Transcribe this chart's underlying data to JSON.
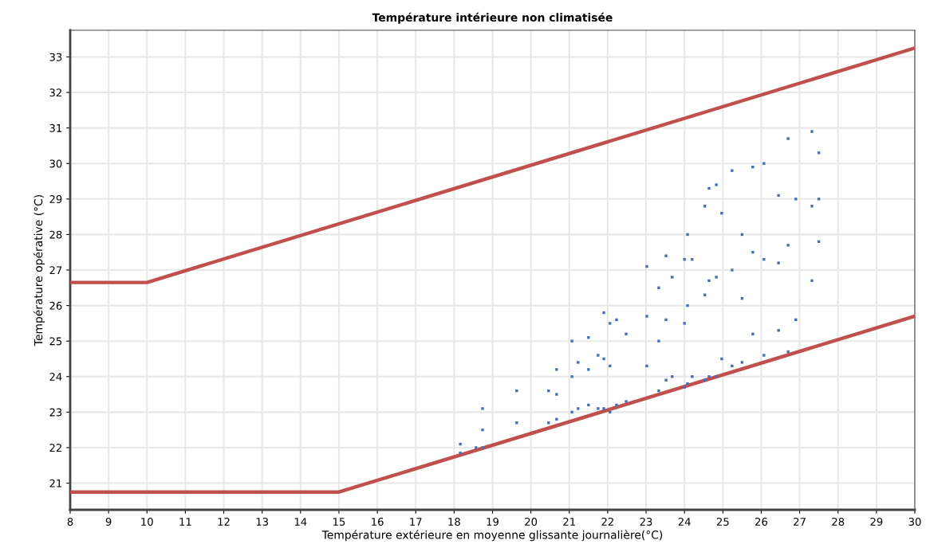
{
  "chart_data": {
    "type": "scatter",
    "title": "Température intérieure non climatisée",
    "xlabel": "Température extérieure en moyenne glissante journalière(°C)",
    "ylabel": "Température opérative (°C)",
    "xlim": [
      8,
      30
    ],
    "xticks": [
      8,
      9,
      10,
      11,
      12,
      13,
      14,
      15,
      16,
      17,
      18,
      19,
      20,
      21,
      22,
      23,
      24,
      25,
      26,
      27,
      28,
      29,
      30
    ],
    "ylim": [
      20.25,
      33.75
    ],
    "yticks": [
      21,
      22,
      23,
      24,
      25,
      26,
      27,
      28,
      29,
      30,
      31,
      32,
      33
    ],
    "grid": true,
    "legend": false,
    "series": [
      {
        "type": "line",
        "color": "#c0504d",
        "x": [
          8,
          10,
          30
        ],
        "values": [
          26.65,
          26.65,
          33.25
        ]
      },
      {
        "type": "line",
        "color": "#c0504d",
        "x": [
          8,
          15,
          30
        ],
        "values": [
          20.75,
          20.75,
          25.7
        ]
      },
      {
        "marker": "square",
        "color": "#4a6fb0",
        "x": [
          18.16,
          18.16,
          18.57,
          18.74,
          18.74,
          18.74,
          19.63,
          19.63,
          20.46,
          20.46,
          20.67,
          20.67,
          20.67,
          21.07,
          21.07,
          21.07,
          21.23,
          21.23,
          21.5,
          21.5,
          21.5,
          21.75,
          21.75,
          21.9,
          21.9,
          21.9,
          22.06,
          22.06,
          22.06,
          22.23,
          22.23,
          22.48,
          22.48,
          23.02,
          23.02,
          23.02,
          23.33,
          23.33,
          23.33,
          23.52,
          23.52,
          23.52,
          23.68,
          23.68,
          24.0,
          24.0,
          24.0,
          24.08,
          24.08,
          24.08,
          24.2,
          24.2,
          24.53,
          24.53,
          24.53,
          24.64,
          24.64,
          24.64,
          24.83,
          24.83,
          24.83,
          24.97,
          24.97,
          25.24,
          25.24,
          25.24,
          25.5,
          25.5,
          25.5,
          25.78,
          25.78,
          25.78,
          26.07,
          26.07,
          26.07,
          26.45,
          26.45,
          26.45,
          26.7,
          26.7,
          26.7,
          26.9,
          26.9,
          27.32,
          27.32,
          27.32,
          27.5,
          27.5,
          27.5
        ],
        "values": [
          21.85,
          22.1,
          22.0,
          22.0,
          22.5,
          23.1,
          22.7,
          23.6,
          22.7,
          23.6,
          22.8,
          23.5,
          24.2,
          23.0,
          24.0,
          25.0,
          23.1,
          24.4,
          23.2,
          24.2,
          25.1,
          23.1,
          24.6,
          23.1,
          24.5,
          25.8,
          23.0,
          24.3,
          25.5,
          23.2,
          25.6,
          23.3,
          25.2,
          24.3,
          25.7,
          27.1,
          23.6,
          25.0,
          26.5,
          23.9,
          25.6,
          27.4,
          24.0,
          26.8,
          23.7,
          25.5,
          27.3,
          23.8,
          26.0,
          28.0,
          24.0,
          27.3,
          23.9,
          26.3,
          28.8,
          24.0,
          26.7,
          29.3,
          24.0,
          26.8,
          29.4,
          24.5,
          28.6,
          24.3,
          27.0,
          29.8,
          24.4,
          26.2,
          28.0,
          25.2,
          27.5,
          29.9,
          24.6,
          27.3,
          30.0,
          25.3,
          27.2,
          29.1,
          24.7,
          27.7,
          30.7,
          25.6,
          29.0,
          26.7,
          28.8,
          30.9,
          27.8,
          29.0,
          30.3
        ]
      }
    ]
  }
}
